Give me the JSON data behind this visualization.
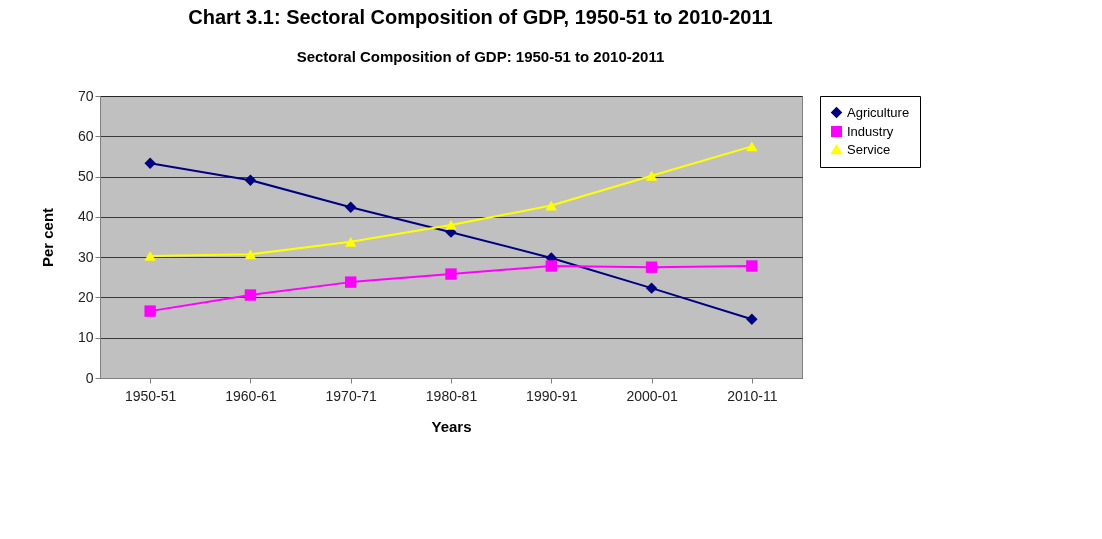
{
  "chart_data": {
    "type": "line",
    "title": "Chart 3.1: Sectoral Composition of GDP, 1950-51 to 2010-2011",
    "subtitle": "Sectoral Composition of GDP: 1950-51  to  2010-2011",
    "xlabel": "Years",
    "ylabel": "Per cent",
    "categories": [
      "1950-51",
      "1960-61",
      "1970-71",
      "1980-81",
      "1990-91",
      "2000-01",
      "2010-11"
    ],
    "series": [
      {
        "name": "Agriculture",
        "color": "#000080",
        "marker": "diamond",
        "values": [
          53.3,
          49.1,
          42.4,
          36.2,
          29.8,
          22.3,
          14.6
        ]
      },
      {
        "name": "Industry",
        "color": "#ff00ff",
        "marker": "square",
        "values": [
          16.6,
          20.6,
          23.8,
          25.8,
          27.8,
          27.5,
          27.8
        ]
      },
      {
        "name": "Service",
        "color": "#ffff00",
        "marker": "triangle",
        "values": [
          30.3,
          30.7,
          33.8,
          38.0,
          42.8,
          50.2,
          57.5
        ]
      }
    ],
    "ylim": [
      0,
      70
    ],
    "yticks": [
      0,
      10,
      20,
      30,
      40,
      50,
      60,
      70
    ],
    "grid": "y",
    "legend": "right"
  }
}
